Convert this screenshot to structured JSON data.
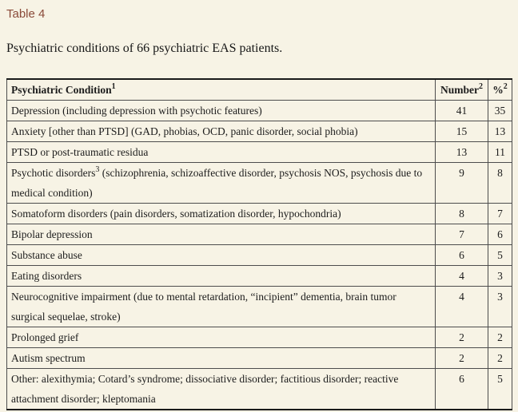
{
  "page": {
    "table_label": "Table 4",
    "caption": "Psychiatric conditions of 66 psychiatric EAS patients."
  },
  "colors": {
    "background": "#f7f3e5",
    "table_label_text": "#8a4a39",
    "body_text": "#1c1c1c",
    "table_border": "#4d4d4d"
  },
  "table": {
    "columns": [
      {
        "label": "Psychiatric Condition",
        "sup": "1"
      },
      {
        "label": "Number",
        "sup": "2"
      },
      {
        "label": "%",
        "sup": "2"
      }
    ],
    "rows": [
      {
        "pre": "Depression (including depression with psychotic features)",
        "sup": "",
        "post": "",
        "number": "41",
        "percent": "35"
      },
      {
        "pre": "Anxiety [other than PTSD] (GAD, phobias, OCD, panic disorder, social phobia)",
        "sup": "",
        "post": "",
        "number": "15",
        "percent": "13"
      },
      {
        "pre": "PTSD or post-traumatic residua",
        "sup": "",
        "post": "",
        "number": "13",
        "percent": "11"
      },
      {
        "pre": "Psychotic disorders",
        "sup": "3",
        "post": " (schizophrenia, schizoaffective disorder, psychosis NOS, psychosis due to medical condition)",
        "number": "9",
        "percent": "8"
      },
      {
        "pre": "Somatoform disorders (pain disorders, somatization disorder, hypochondria)",
        "sup": "",
        "post": "",
        "number": "8",
        "percent": "7"
      },
      {
        "pre": "Bipolar depression",
        "sup": "",
        "post": "",
        "number": "7",
        "percent": "6"
      },
      {
        "pre": "Substance abuse",
        "sup": "",
        "post": "",
        "number": "6",
        "percent": "5"
      },
      {
        "pre": "Eating disorders",
        "sup": "",
        "post": "",
        "number": "4",
        "percent": "3"
      },
      {
        "pre": "Neurocognitive impairment (due to mental retardation, “incipient” dementia, brain tumor surgical sequelae, stroke)",
        "sup": "",
        "post": "",
        "number": "4",
        "percent": "3"
      },
      {
        "pre": "Prolonged grief",
        "sup": "",
        "post": "",
        "number": "2",
        "percent": "2"
      },
      {
        "pre": "Autism spectrum",
        "sup": "",
        "post": "",
        "number": "2",
        "percent": "2"
      },
      {
        "pre": "Other: alexithymia; Cotard’s syndrome; dissociative disorder; factitious disorder; reactive attachment disorder; kleptomania",
        "sup": "",
        "post": "",
        "number": "6",
        "percent": "5"
      }
    ]
  }
}
